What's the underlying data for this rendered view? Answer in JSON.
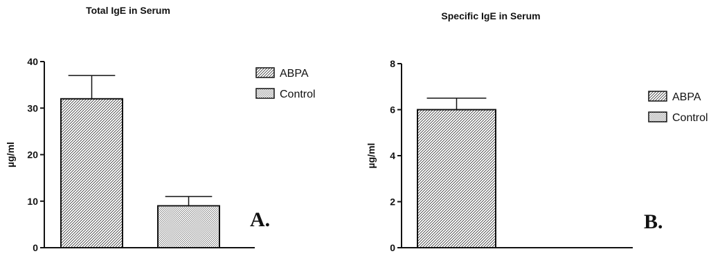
{
  "chart_data": [
    {
      "type": "bar",
      "title": "Total IgE in Serum",
      "ylabel": "µg/ml",
      "xlabel": "",
      "ylim": [
        0,
        40
      ],
      "yticks": [
        0,
        10,
        20,
        30,
        40
      ],
      "categories": [
        "ABPA",
        "Control"
      ],
      "values": [
        32,
        9
      ],
      "error_upper": [
        5,
        2
      ],
      "panel_label": "A.",
      "legend": {
        "position": "top-right",
        "entries": [
          "ABPA",
          "Control"
        ]
      }
    },
    {
      "type": "bar",
      "title": "Specific IgE in Serum",
      "ylabel": "µg/ml",
      "xlabel": "",
      "ylim": [
        0,
        8
      ],
      "yticks": [
        0,
        2,
        4,
        6,
        8
      ],
      "categories": [
        "ABPA",
        "Control"
      ],
      "values": [
        6,
        0
      ],
      "error_upper": [
        0.5,
        0
      ],
      "panel_label": "B.",
      "legend": {
        "position": "top-right",
        "entries": [
          "ABPA",
          "Control"
        ]
      }
    }
  ]
}
